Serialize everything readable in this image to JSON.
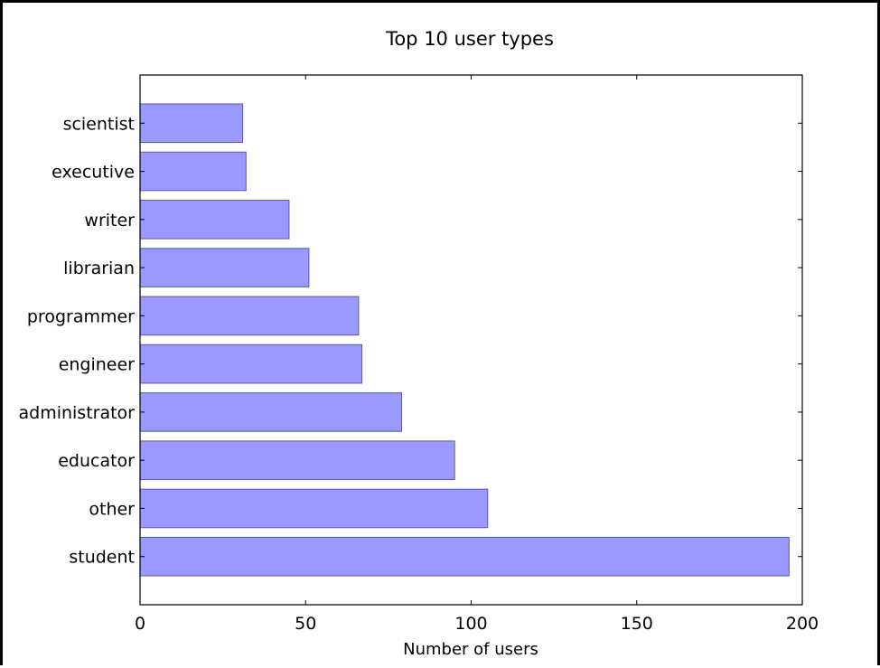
{
  "chart_data": {
    "type": "bar",
    "orientation": "horizontal",
    "title": "Top 10 user types",
    "xlabel": "Number of users",
    "ylabel": "",
    "categories": [
      "student",
      "other",
      "educator",
      "administrator",
      "engineer",
      "programmer",
      "librarian",
      "writer",
      "executive",
      "scientist"
    ],
    "values": [
      196,
      105,
      95,
      79,
      67,
      66,
      51,
      45,
      32,
      31
    ],
    "xlim": [
      0,
      200
    ],
    "xticks": [
      "0",
      "50",
      "100",
      "150",
      "200"
    ],
    "grid": false,
    "legend": "none",
    "colors": {
      "bar_fill": "#9999ff",
      "bar_edge": "#5a5aa8",
      "axis": "#000000"
    }
  }
}
